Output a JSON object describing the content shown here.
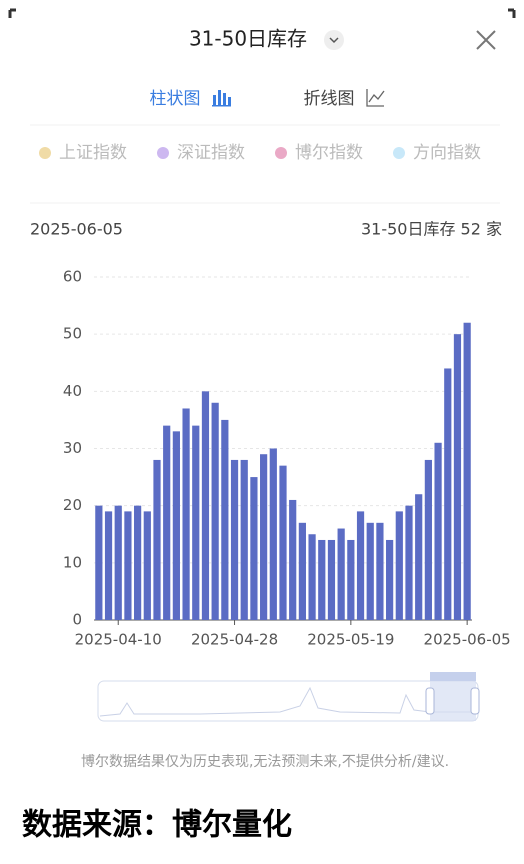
{
  "header": {
    "title": "31-50日库存"
  },
  "tabs": [
    "柱状图",
    "折线图"
  ],
  "legend": [
    {
      "name": "上证指数",
      "color": "#f0dba6"
    },
    {
      "name": "深证指数",
      "color": "#cdb8f0"
    },
    {
      "name": "博尔指数",
      "color": "#eaa9c6"
    },
    {
      "name": "方向指数",
      "color": "#c8e8f9"
    }
  ],
  "info": {
    "date": "2025-06-05",
    "summary": "31-50日库存 52 家"
  },
  "chart_data": {
    "type": "bar",
    "color": "#5b6cc4",
    "grid": true,
    "categories": [
      null,
      null,
      "2025-04-10",
      null,
      null,
      null,
      null,
      null,
      null,
      null,
      null,
      null,
      null,
      null,
      "2025-04-28",
      null,
      null,
      null,
      null,
      null,
      null,
      null,
      null,
      null,
      null,
      null,
      "2025-05-19",
      null,
      null,
      null,
      null,
      null,
      null,
      null,
      null,
      null,
      null,
      null,
      "2025-06-05"
    ],
    "values": [
      20,
      19,
      20,
      19,
      20,
      19,
      28,
      34,
      33,
      37,
      34,
      40,
      38,
      35,
      28,
      28,
      25,
      29,
      30,
      27,
      21,
      17,
      15,
      14,
      14,
      16,
      14,
      19,
      17,
      17,
      14,
      19,
      20,
      22,
      28,
      31,
      44,
      50,
      52
    ],
    "ylim": [
      0,
      60
    ],
    "yticks": [
      0,
      10,
      20,
      30,
      40,
      50,
      60
    ]
  },
  "disclaimer": "博尔数据结果仅为历史表现,无法预测未来,不提供分析/建议.",
  "footer": "数据来源：博尔量化"
}
